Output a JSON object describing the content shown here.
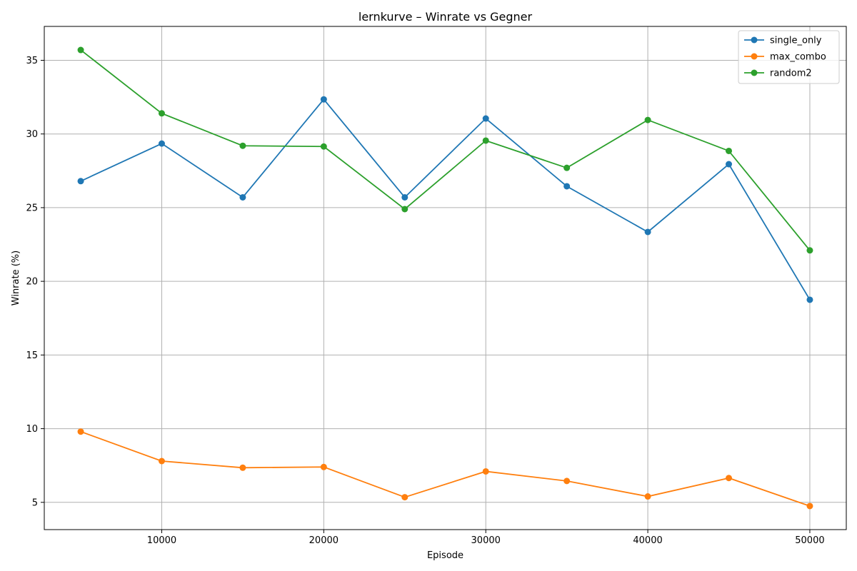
{
  "chart_data": {
    "type": "line",
    "title": "lernkurve – Winrate vs Gegner",
    "xlabel": "Episode",
    "ylabel": "Winrate (%)",
    "xlim": [
      2750,
      52250
    ],
    "ylim": [
      3.15,
      37.3
    ],
    "xticks": [
      10000,
      20000,
      30000,
      40000,
      50000
    ],
    "yticks": [
      5,
      10,
      15,
      20,
      25,
      30,
      35
    ],
    "grid": true,
    "legend_position": "top-right",
    "x": [
      5000,
      10000,
      15000,
      20000,
      25000,
      30000,
      35000,
      40000,
      45000,
      50000
    ],
    "series": [
      {
        "name": "single_only",
        "color": "#1f77b4",
        "values": [
          26.8,
          29.35,
          25.7,
          32.35,
          25.7,
          31.05,
          26.45,
          23.35,
          27.95,
          18.75
        ]
      },
      {
        "name": "max_combo",
        "color": "#ff7f0e",
        "values": [
          9.8,
          7.8,
          7.35,
          7.4,
          5.35,
          7.1,
          6.45,
          5.4,
          6.65,
          4.75
        ]
      },
      {
        "name": "random2",
        "color": "#2ca02c",
        "values": [
          35.7,
          31.4,
          29.2,
          29.15,
          24.9,
          29.55,
          27.7,
          30.95,
          28.85,
          22.1
        ]
      }
    ]
  }
}
